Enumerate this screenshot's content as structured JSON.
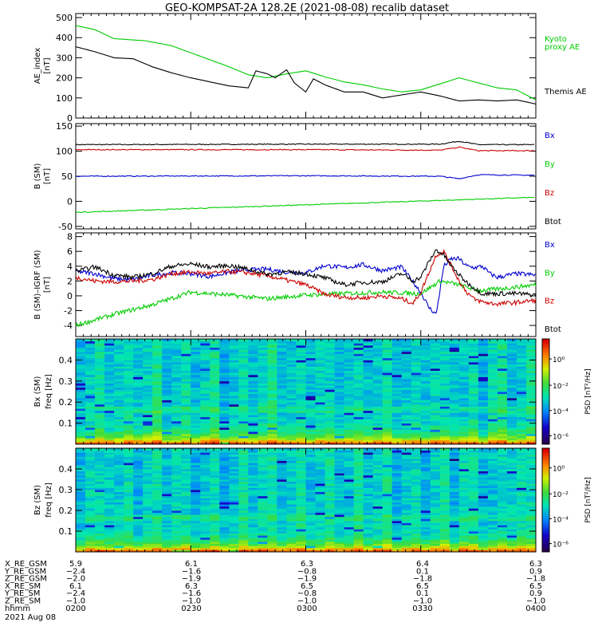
{
  "title": "GEO-KOMPSAT-2A 128.2E (2021-08-08) recalib dataset",
  "panels": [
    {
      "id": "ae",
      "ylabel_lines": [
        "AE_index",
        "[nT]"
      ],
      "legend": [
        {
          "text": "Kyoto",
          "color": "#00cc00"
        },
        {
          "text": "proxy AE",
          "color": "#00cc00"
        },
        {
          "text": "Themis AE",
          "color": "#000000"
        }
      ]
    },
    {
      "id": "b",
      "ylabel_lines": [
        "B (SM)",
        "[nT]"
      ],
      "legend": [
        {
          "text": "Bx",
          "color": "#0000cc"
        },
        {
          "text": "By",
          "color": "#00cc00"
        },
        {
          "text": "Bz",
          "color": "#cc0000"
        },
        {
          "text": "Btot",
          "color": "#000000"
        }
      ]
    },
    {
      "id": "db",
      "ylabel_lines": [
        "B (SM)–IGRF (SM)",
        "[nT]"
      ],
      "legend": [
        {
          "text": "Bx",
          "color": "#0000cc"
        },
        {
          "text": "By",
          "color": "#00cc00"
        },
        {
          "text": "Bz",
          "color": "#cc0000"
        },
        {
          "text": "Btot",
          "color": "#000000"
        }
      ]
    },
    {
      "id": "sbx",
      "ylabel_lines": [
        "Bx (SM)",
        "freq [Hz]"
      ],
      "cbar_label": "PSD [nT²/Hz]"
    },
    {
      "id": "sbz",
      "ylabel_lines": [
        "Bz (SM)",
        "freq [Hz]"
      ],
      "cbar_label": "PSD [nT²/Hz]"
    }
  ],
  "colorbar_ticks": [
    "10⁰",
    "10⁻²",
    "10⁻⁴",
    "10⁻⁶"
  ],
  "ephemeris": {
    "rows": [
      {
        "label": "X_RE_GSM",
        "values": [
          "5.9",
          "6.1",
          "6.3",
          "6.4",
          "6.3"
        ]
      },
      {
        "label": "Y_RE_GSM",
        "values": [
          "−2.4",
          "−1.6",
          "−0.8",
          "0.1",
          "0.9"
        ]
      },
      {
        "label": "Z_RE_GSM",
        "values": [
          "−2.0",
          "−1.9",
          "−1.9",
          "−1.8",
          "−1.8"
        ]
      },
      {
        "label": "X_RE_SM",
        "values": [
          "6.1",
          "6.3",
          "6.5",
          "6.5",
          "6.5"
        ]
      },
      {
        "label": "Y_RE_SM",
        "values": [
          "−2.4",
          "−1.6",
          "−0.8",
          "0.1",
          "0.9"
        ]
      },
      {
        "label": "Z_RE_SM",
        "values": [
          "−1.0",
          "−1.0",
          "−1.0",
          "−1.0",
          "−1.0"
        ]
      },
      {
        "label": "hhmm",
        "values": [
          "0200",
          "0230",
          "0300",
          "0330",
          "0400"
        ]
      }
    ],
    "date": "2021 Aug 08"
  },
  "chart_data": [
    {
      "type": "line",
      "xlim": [
        "02:00",
        "04:00"
      ],
      "ylim": [
        0,
        520
      ],
      "yticks": [
        0,
        100,
        200,
        300,
        400,
        500
      ],
      "series": [
        {
          "name": "Kyoto proxy AE",
          "color": "#00cc00",
          "x": [
            0,
            5,
            10,
            18,
            25,
            30,
            35,
            40,
            45,
            50,
            55,
            60,
            65,
            70,
            75,
            80,
            85,
            90,
            95,
            100,
            105,
            110,
            115,
            120
          ],
          "y": [
            460,
            440,
            395,
            385,
            360,
            325,
            290,
            255,
            215,
            200,
            220,
            235,
            205,
            180,
            165,
            145,
            130,
            140,
            170,
            200,
            175,
            150,
            140,
            90
          ]
        },
        {
          "name": "Themis AE",
          "color": "#000000",
          "x": [
            0,
            5,
            10,
            15,
            20,
            25,
            30,
            35,
            40,
            45,
            47,
            50,
            52,
            55,
            57,
            60,
            62,
            65,
            70,
            75,
            80,
            85,
            90,
            95,
            100,
            105,
            110,
            115,
            120
          ],
          "y": [
            355,
            330,
            300,
            295,
            255,
            225,
            200,
            180,
            160,
            150,
            235,
            220,
            200,
            240,
            175,
            130,
            195,
            165,
            130,
            130,
            100,
            115,
            130,
            110,
            85,
            90,
            85,
            90,
            70
          ]
        }
      ]
    },
    {
      "type": "line",
      "xlim": [
        "02:00",
        "04:00"
      ],
      "ylim": [
        -55,
        155
      ],
      "yticks": [
        -50,
        0,
        50,
        100,
        150
      ],
      "series": [
        {
          "name": "Btot",
          "color": "#000000",
          "x": [
            0,
            60,
            95,
            100,
            105,
            120
          ],
          "y": [
            113,
            114,
            114,
            120,
            113,
            113
          ]
        },
        {
          "name": "Bz",
          "color": "#cc0000",
          "x": [
            0,
            60,
            95,
            100,
            105,
            120
          ],
          "y": [
            103,
            103,
            102,
            108,
            101,
            101
          ]
        },
        {
          "name": "Bx",
          "color": "#0000cc",
          "x": [
            0,
            60,
            95,
            100,
            105,
            120
          ],
          "y": [
            50,
            51,
            50,
            45,
            53,
            52
          ]
        },
        {
          "name": "By",
          "color": "#00cc00",
          "x": [
            0,
            120
          ],
          "y": [
            -22,
            8
          ]
        }
      ]
    },
    {
      "type": "line",
      "xlim": [
        "02:00",
        "04:00"
      ],
      "ylim": [
        -5.5,
        8.5
      ],
      "yticks": [
        -6,
        -4,
        -2,
        0,
        2,
        4,
        6,
        8
      ],
      "series": [
        {
          "name": "Bx",
          "color": "#0000cc",
          "x": [
            0,
            5,
            10,
            15,
            20,
            25,
            30,
            35,
            40,
            45,
            50,
            55,
            60,
            65,
            70,
            75,
            80,
            85,
            90,
            92,
            94,
            96,
            98,
            100,
            102,
            104,
            106,
            108,
            110,
            115,
            120
          ],
          "y": [
            3.3,
            3.0,
            2.3,
            2.2,
            2.8,
            3.1,
            3.0,
            2.6,
            3.2,
            3.5,
            3.6,
            3.2,
            3.1,
            4.1,
            3.8,
            4.2,
            3.4,
            3.9,
            0.5,
            -1.5,
            -2.5,
            4.0,
            5.0,
            5.0,
            4.0,
            3.8,
            4.0,
            3.0,
            2.5,
            3.0,
            2.8
          ]
        },
        {
          "name": "By",
          "color": "#00cc00",
          "x": [
            0,
            10,
            20,
            30,
            40,
            50,
            60,
            70,
            80,
            90,
            95,
            100,
            105,
            110,
            120
          ],
          "y": [
            -4.0,
            -2.5,
            -1.2,
            0.5,
            0.1,
            -0.4,
            0.1,
            0.3,
            0.5,
            0.3,
            2.0,
            1.5,
            0.7,
            0.9,
            1.5
          ]
        },
        {
          "name": "Bz",
          "color": "#cc0000",
          "x": [
            0,
            5,
            10,
            15,
            20,
            25,
            30,
            35,
            40,
            45,
            50,
            55,
            60,
            65,
            70,
            75,
            80,
            85,
            88,
            90,
            92,
            94,
            96,
            98,
            100,
            102,
            104,
            106,
            108,
            110,
            115,
            120
          ],
          "y": [
            2.5,
            2.0,
            1.9,
            2.0,
            2.2,
            3.0,
            3.2,
            3.0,
            3.3,
            3.1,
            2.7,
            2.1,
            1.5,
            0.2,
            -0.2,
            -0.3,
            0.0,
            -0.4,
            -1.0,
            0.5,
            3.0,
            5.5,
            6.0,
            4.0,
            2.0,
            0.5,
            -0.5,
            -0.8,
            -1.0,
            -1.1,
            -0.9,
            -0.6
          ]
        },
        {
          "name": "Btot",
          "color": "#000000",
          "x": [
            0,
            5,
            10,
            15,
            20,
            25,
            30,
            35,
            40,
            45,
            50,
            55,
            60,
            65,
            70,
            75,
            80,
            85,
            88,
            90,
            92,
            94,
            96,
            98,
            100,
            102,
            104,
            106,
            108,
            110,
            115,
            120
          ],
          "y": [
            3.3,
            3.9,
            2.8,
            2.5,
            3.0,
            4.0,
            4.3,
            3.9,
            4.1,
            3.6,
            2.9,
            3.2,
            3.0,
            2.4,
            1.5,
            1.8,
            1.9,
            3.0,
            2.0,
            2.5,
            4.5,
            6.2,
            5.5,
            4.0,
            2.8,
            1.8,
            1.0,
            0.3,
            0.3,
            0.3,
            0.3,
            0.1
          ]
        }
      ]
    },
    {
      "type": "heatmap",
      "xlim": [
        "02:00",
        "04:00"
      ],
      "ylim": [
        0,
        0.5
      ],
      "yticks": [
        0.1,
        0.2,
        0.3,
        0.4
      ],
      "zscale": "log",
      "zrange": [
        1e-06,
        10.0
      ],
      "colorbar_label": "PSD [nT²/Hz]"
    },
    {
      "type": "heatmap",
      "xlim": [
        "02:00",
        "04:00"
      ],
      "ylim": [
        0,
        0.5
      ],
      "yticks": [
        0.1,
        0.2,
        0.3,
        0.4
      ],
      "zscale": "log",
      "zrange": [
        1e-06,
        10.0
      ],
      "colorbar_label": "PSD [nT²/Hz]"
    }
  ]
}
